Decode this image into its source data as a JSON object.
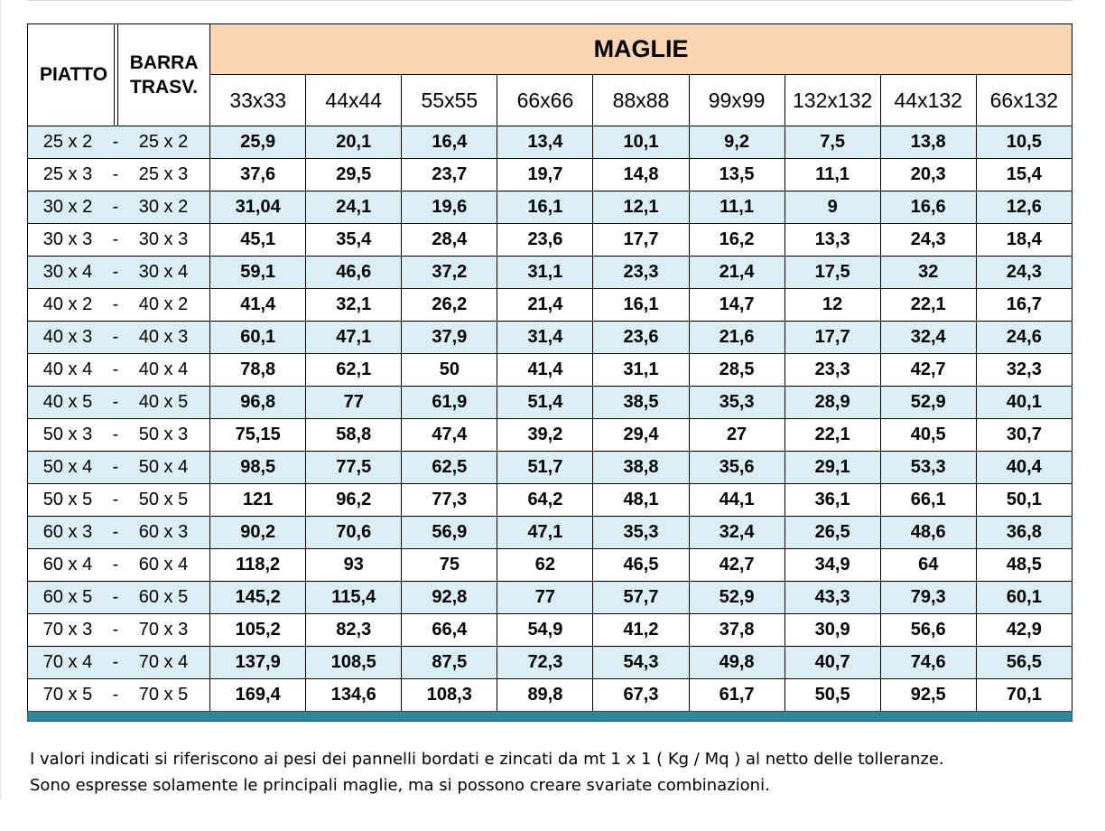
{
  "header": {
    "piatto": "PIATTO",
    "barra_line1": "BARRA",
    "barra_line2": "TRASV.",
    "group": "MAGLIE",
    "sizes": [
      "33x33",
      "44x44",
      "55x55",
      "66x66",
      "88x88",
      "99x99",
      "132x132",
      "44x132",
      "66x132"
    ]
  },
  "rows": [
    {
      "piatto": "25 x 2",
      "dash": "-",
      "barra": "25 x 2",
      "values": [
        "25,9",
        "20,1",
        "16,4",
        "13,4",
        "10,1",
        "9,2",
        "7,5",
        "13,8",
        "10,5"
      ]
    },
    {
      "piatto": "25 x 3",
      "dash": "-",
      "barra": "25 x 3",
      "values": [
        "37,6",
        "29,5",
        "23,7",
        "19,7",
        "14,8",
        "13,5",
        "11,1",
        "20,3",
        "15,4"
      ]
    },
    {
      "piatto": "30 x 2",
      "dash": "-",
      "barra": "30 x 2",
      "values": [
        "31,04",
        "24,1",
        "19,6",
        "16,1",
        "12,1",
        "11,1",
        "9",
        "16,6",
        "12,6"
      ]
    },
    {
      "piatto": "30 x 3",
      "dash": "-",
      "barra": "30 x 3",
      "values": [
        "45,1",
        "35,4",
        "28,4",
        "23,6",
        "17,7",
        "16,2",
        "13,3",
        "24,3",
        "18,4"
      ]
    },
    {
      "piatto": "30 x 4",
      "dash": "-",
      "barra": "30 x 4",
      "values": [
        "59,1",
        "46,6",
        "37,2",
        "31,1",
        "23,3",
        "21,4",
        "17,5",
        "32",
        "24,3"
      ]
    },
    {
      "piatto": "40 x 2",
      "dash": "-",
      "barra": "40 x 2",
      "values": [
        "41,4",
        "32,1",
        "26,2",
        "21,4",
        "16,1",
        "14,7",
        "12",
        "22,1",
        "16,7"
      ]
    },
    {
      "piatto": "40 x 3",
      "dash": "-",
      "barra": "40 x 3",
      "values": [
        "60,1",
        "47,1",
        "37,9",
        "31,4",
        "23,6",
        "21,6",
        "17,7",
        "32,4",
        "24,6"
      ]
    },
    {
      "piatto": "40 x 4",
      "dash": "-",
      "barra": "40 x 4",
      "values": [
        "78,8",
        "62,1",
        "50",
        "41,4",
        "31,1",
        "28,5",
        "23,3",
        "42,7",
        "32,3"
      ]
    },
    {
      "piatto": "40 x 5",
      "dash": "-",
      "barra": "40 x 5",
      "values": [
        "96,8",
        "77",
        "61,9",
        "51,4",
        "38,5",
        "35,3",
        "28,9",
        "52,9",
        "40,1"
      ]
    },
    {
      "piatto": "50 x 3",
      "dash": "-",
      "barra": "50 x 3",
      "values": [
        "75,15",
        "58,8",
        "47,4",
        "39,2",
        "29,4",
        "27",
        "22,1",
        "40,5",
        "30,7"
      ]
    },
    {
      "piatto": "50 x 4",
      "dash": "-",
      "barra": "50 x 4",
      "values": [
        "98,5",
        "77,5",
        "62,5",
        "51,7",
        "38,8",
        "35,6",
        "29,1",
        "53,3",
        "40,4"
      ]
    },
    {
      "piatto": "50 x 5",
      "dash": "-",
      "barra": "50 x 5",
      "values": [
        "121",
        "96,2",
        "77,3",
        "64,2",
        "48,1",
        "44,1",
        "36,1",
        "66,1",
        "50,1"
      ]
    },
    {
      "piatto": "60 x 3",
      "dash": "-",
      "barra": "60 x 3",
      "values": [
        "90,2",
        "70,6",
        "56,9",
        "47,1",
        "35,3",
        "32,4",
        "26,5",
        "48,6",
        "36,8"
      ]
    },
    {
      "piatto": "60 x 4",
      "dash": "-",
      "barra": "60 x 4",
      "values": [
        "118,2",
        "93",
        "75",
        "62",
        "46,5",
        "42,7",
        "34,9",
        "64",
        "48,5"
      ]
    },
    {
      "piatto": "60 x 5",
      "dash": "-",
      "barra": "60 x 5",
      "values": [
        "145,2",
        "115,4",
        "92,8",
        "77",
        "57,7",
        "52,9",
        "43,3",
        "79,3",
        "60,1"
      ]
    },
    {
      "piatto": "70 x 3",
      "dash": "-",
      "barra": "70 x 3",
      "values": [
        "105,2",
        "82,3",
        "66,4",
        "54,9",
        "41,2",
        "37,8",
        "30,9",
        "56,6",
        "42,9"
      ]
    },
    {
      "piatto": "70 x 4",
      "dash": "-",
      "barra": "70 x 4",
      "values": [
        "137,9",
        "108,5",
        "87,5",
        "72,3",
        "54,3",
        "49,8",
        "40,7",
        "74,6",
        "56,5"
      ]
    },
    {
      "piatto": "70 x 5",
      "dash": "-",
      "barra": "70 x 5",
      "values": [
        "169,4",
        "134,6",
        "108,3",
        "89,8",
        "67,3",
        "61,7",
        "50,5",
        "92,5",
        "70,1"
      ]
    }
  ],
  "notes": {
    "line1": "I valori indicati si riferiscono ai pesi dei pannelli bordati e zincati da mt  1 x 1  ( Kg / Mq ) al netto delle tolleranze.",
    "line2": "Sono espresse solamente le principali maglie, ma si possono creare svariate combinazioni."
  },
  "colors": {
    "header_fill": "#fcd5b4",
    "row_alt_fill": "#dbeef4",
    "footer_bar": "#31859c"
  }
}
